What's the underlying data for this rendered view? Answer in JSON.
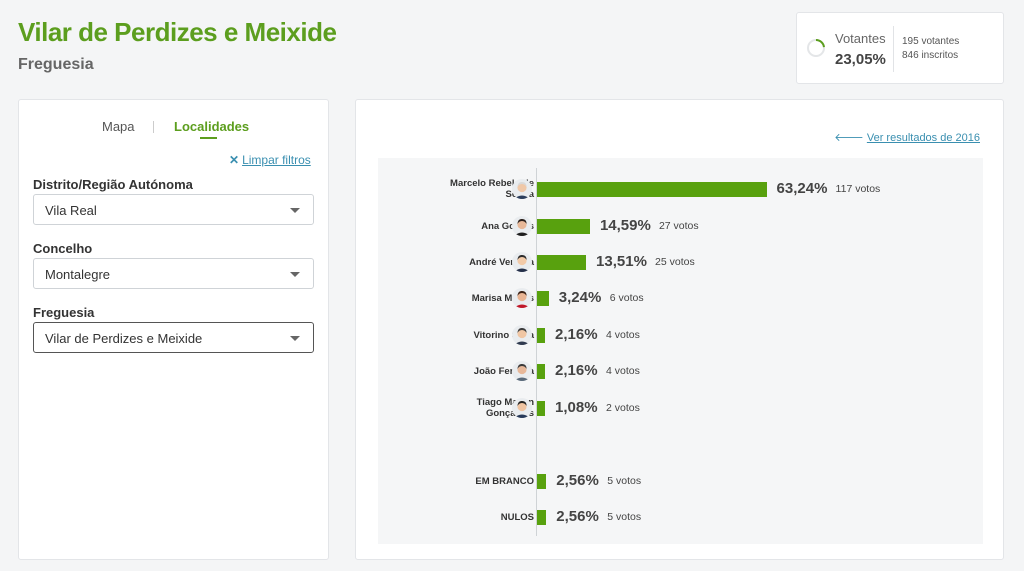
{
  "header": {
    "title": "Vilar de Perdizes e Meixide",
    "subtitle": "Freguesia"
  },
  "turnout": {
    "label": "Votantes",
    "percent": "23,05%",
    "percent_value": 23.05,
    "voters": "195 votantes",
    "registered": "846 inscritos"
  },
  "tabs": [
    {
      "label": "Mapa"
    },
    {
      "label": "Localidades"
    }
  ],
  "clear_filters": {
    "icon": "close-icon",
    "label": "Limpar filtros"
  },
  "filters": {
    "district": {
      "label": "Distrito/Região Autónoma",
      "value": "Vila Real"
    },
    "council": {
      "label": "Concelho",
      "value": "Montalegre"
    },
    "parish": {
      "label": "Freguesia",
      "value": "Vilar de Perdizes e Meixide"
    }
  },
  "prev_results": {
    "icon": "arrow-left-icon",
    "label": "Ver resultados de 2016"
  },
  "colors": {
    "accent": "#5c9e1e",
    "bar": "#58a10e",
    "link": "#3a8fb0"
  },
  "chart_data": {
    "type": "bar",
    "orientation": "horizontal",
    "categories": [
      "Marcelo Rebelo de Sousa",
      "Ana Gomes",
      "André Ventura",
      "Marisa Matias",
      "Vitorino Silva",
      "João Ferreira",
      "Tiago Mayan Gonçalves",
      "EM BRANCO",
      "NULOS"
    ],
    "values": [
      63.24,
      14.59,
      13.51,
      3.24,
      2.16,
      2.16,
      1.08,
      2.56,
      2.56
    ],
    "value_labels": [
      "63,24%",
      "14,59%",
      "13,51%",
      "3,24%",
      "2,16%",
      "2,16%",
      "1,08%",
      "2,56%",
      "2,56%"
    ],
    "votes": [
      "117 votos",
      "27 votos",
      "25 votos",
      "6 votos",
      "4 votos",
      "4 votos",
      "2 votos",
      "5 votos",
      "5 votos"
    ],
    "grid": false
  }
}
